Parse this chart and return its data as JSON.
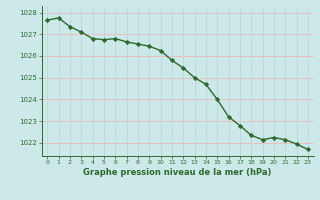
{
  "x": [
    0,
    1,
    2,
    3,
    4,
    5,
    6,
    7,
    8,
    9,
    10,
    11,
    12,
    13,
    14,
    15,
    16,
    17,
    18,
    19,
    20,
    21,
    22,
    23
  ],
  "y": [
    1027.65,
    1027.75,
    1027.35,
    1027.1,
    1026.8,
    1026.75,
    1026.8,
    1026.65,
    1026.55,
    1026.45,
    1026.25,
    1025.8,
    1025.45,
    1025.0,
    1024.7,
    1024.0,
    1023.2,
    1022.8,
    1022.35,
    1022.15,
    1022.25,
    1022.15,
    1021.95,
    1021.7
  ],
  "line_color": "#2d6a2d",
  "marker_color": "#2d6a2d",
  "bg_color": "#cce8e8",
  "hgrid_color": "#f0b8b8",
  "vgrid_color": "#b8d8d8",
  "xlabel": "Graphe pression niveau de la mer (hPa)",
  "xlabel_color": "#2d6a2d",
  "tick_color": "#2d6a2d",
  "axis_color": "#2d6a2d",
  "ylim": [
    1021.4,
    1028.3
  ],
  "xlim": [
    -0.5,
    23.5
  ],
  "yticks": [
    1022,
    1023,
    1024,
    1025,
    1026,
    1027,
    1028
  ],
  "xticks": [
    0,
    1,
    2,
    3,
    4,
    5,
    6,
    7,
    8,
    9,
    10,
    11,
    12,
    13,
    14,
    15,
    16,
    17,
    18,
    19,
    20,
    21,
    22,
    23
  ]
}
